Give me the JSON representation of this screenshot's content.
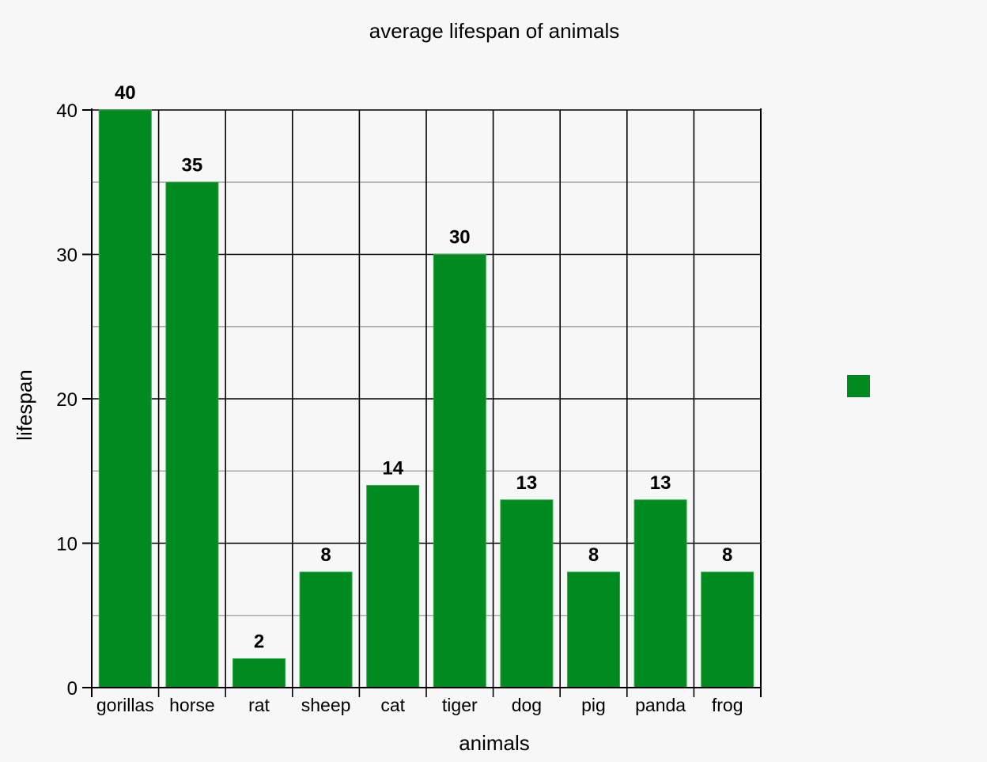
{
  "chart_data": {
    "type": "bar",
    "title": "average lifespan of animals",
    "xlabel": "animals",
    "ylabel": "lifespan",
    "categories": [
      "gorillas",
      "horse",
      "rat",
      "sheep",
      "cat",
      "tiger",
      "dog",
      "pig",
      "panda",
      "frog"
    ],
    "values": [
      40,
      35,
      2,
      8,
      14,
      30,
      13,
      8,
      13,
      8
    ],
    "ylim": [
      0,
      40
    ],
    "yticks": [
      0,
      10,
      20,
      30,
      40
    ],
    "grid": true,
    "data_labels": true,
    "legend": "right",
    "bar_color": "#008a20"
  }
}
